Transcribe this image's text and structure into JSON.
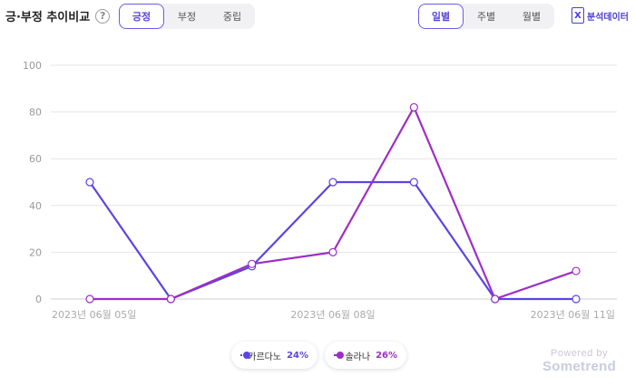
{
  "header": {
    "title": "긍·부정 추이비교",
    "help_icon": "?",
    "sentiment_tabs": [
      {
        "label": "긍정",
        "active": true
      },
      {
        "label": "부정",
        "active": false
      },
      {
        "label": "중립",
        "active": false
      }
    ],
    "period_tabs": [
      {
        "label": "일별",
        "active": true
      },
      {
        "label": "주별",
        "active": false
      },
      {
        "label": "월별",
        "active": false
      }
    ],
    "export_icon": "excel-icon",
    "export_label": "분석데이터"
  },
  "chart_data": {
    "type": "line",
    "title": "",
    "xlabel": "",
    "ylabel": "",
    "ylim": [
      0,
      100
    ],
    "yticks": [
      0,
      20,
      40,
      60,
      80,
      100
    ],
    "grid": true,
    "x": [
      "2023-06-05",
      "2023-06-06",
      "2023-06-07",
      "2023-06-08",
      "2023-06-09",
      "2023-06-10",
      "2023-06-11"
    ],
    "x_tick_labels": [
      {
        "index": 0,
        "label": "2023년 06월 05일"
      },
      {
        "index": 3,
        "label": "2023년 06월 08일"
      },
      {
        "index": 6,
        "label": "2023년 06월 11일"
      }
    ],
    "series": [
      {
        "name": "카르다노",
        "values": [
          50,
          0,
          14,
          50,
          50,
          0,
          0
        ],
        "color": "#5b45e0"
      },
      {
        "name": "솔라나",
        "values": [
          0,
          0,
          15,
          20,
          82,
          0,
          12
        ],
        "color": "#9b2fc4"
      }
    ],
    "legend_position": "bottom-center"
  },
  "legend": [
    {
      "name": "카르다노",
      "pct": "24%",
      "color": "#5b45e0"
    },
    {
      "name": "솔라나",
      "pct": "26%",
      "color": "#9b2fc4"
    }
  ],
  "branding": {
    "powered_by": "Powered by",
    "brand": "Sometrend"
  }
}
